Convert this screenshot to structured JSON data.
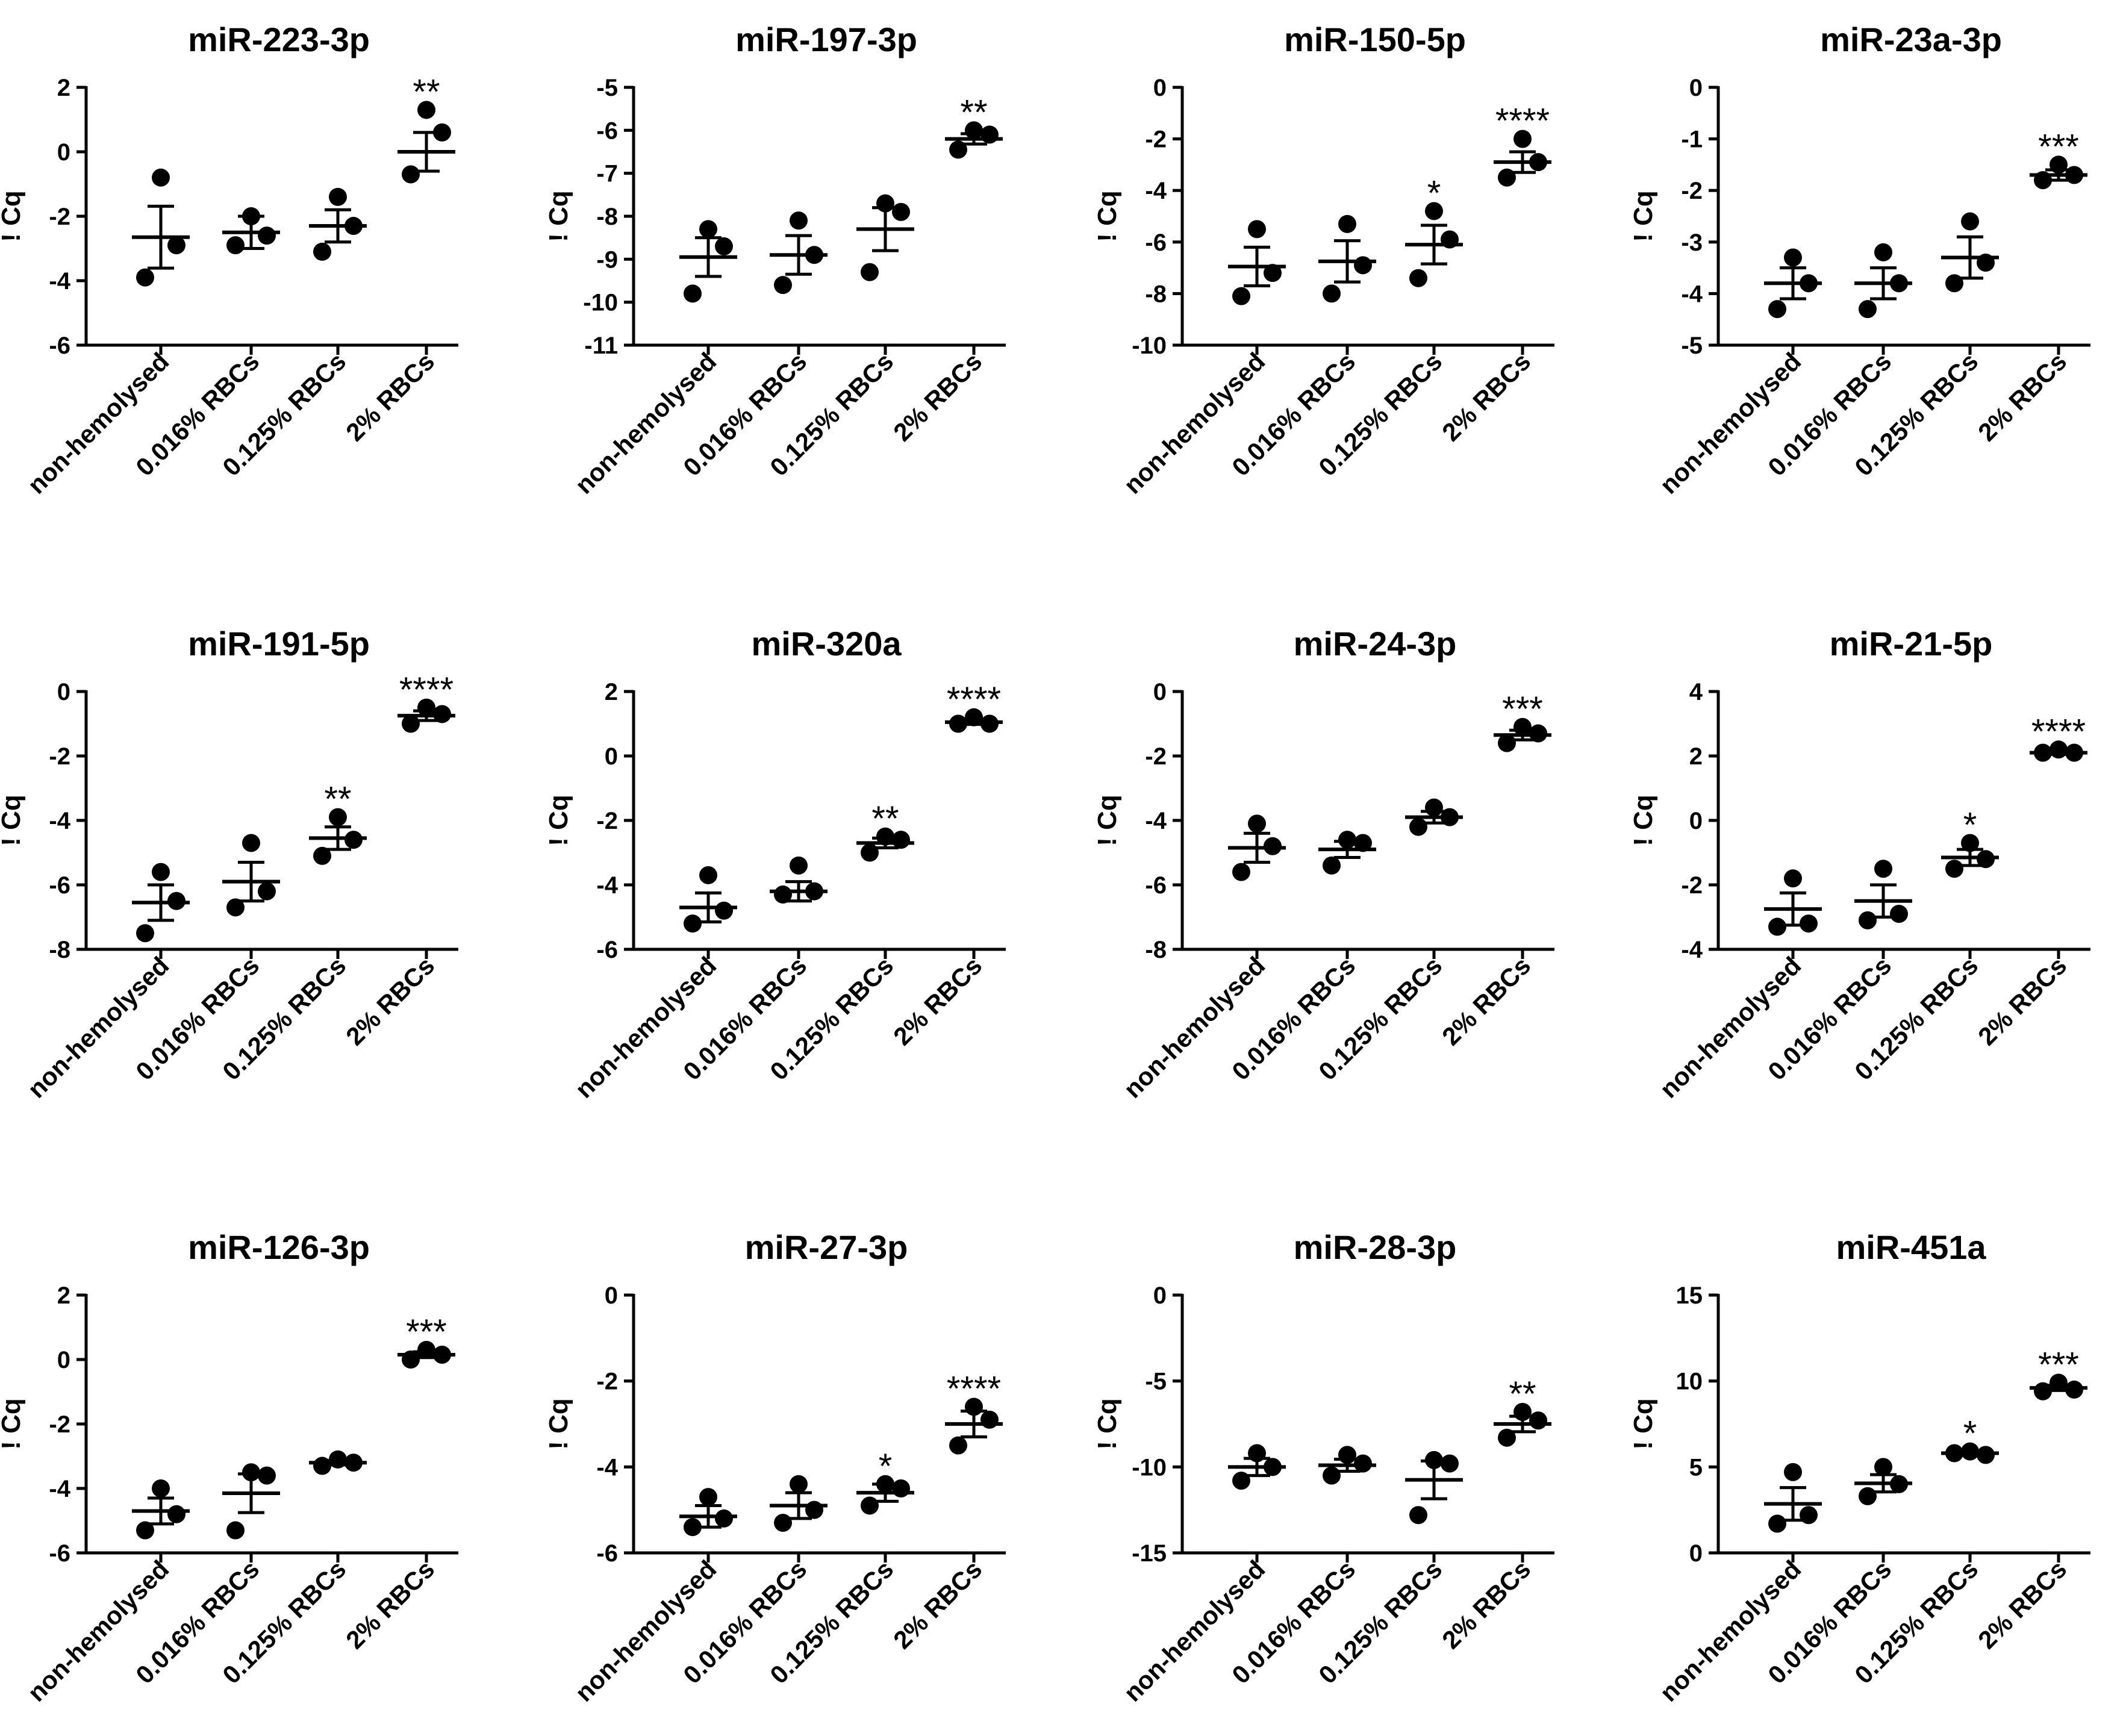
{
  "figure": {
    "background": "#ffffff",
    "ink": "#000000"
  },
  "chart_data": [
    {
      "type": "scatter",
      "title": "miR-223-3p",
      "ylabel": "! Cq",
      "xlabel": "",
      "categories": [
        "non-hemolysed",
        "0.016% RBCs",
        "0.125% RBCs",
        "2% RBCs"
      ],
      "ylim": [
        -6,
        2
      ],
      "yticks": [
        2,
        0,
        -2,
        -4,
        -6
      ],
      "ytick_labels": [
        "2",
        "0",
        "-2",
        "-4",
        "-6"
      ],
      "points": [
        [
          -0.8,
          -2.9,
          -3.9
        ],
        [
          -2.0,
          -2.6,
          -2.9
        ],
        [
          -1.4,
          -2.3,
          -3.1
        ],
        [
          1.3,
          0.6,
          -0.7
        ]
      ],
      "means": [
        -2.65,
        -2.5,
        -2.3,
        0.0
      ],
      "sem": [
        0.96,
        0.5,
        0.5,
        0.6
      ],
      "significance": [
        "",
        "",
        "",
        "**"
      ]
    },
    {
      "type": "scatter",
      "title": "miR-197-3p",
      "ylabel": "! Cq",
      "xlabel": "",
      "categories": [
        "non-hemolysed",
        "0.016% RBCs",
        "0.125% RBCs",
        "2% RBCs"
      ],
      "ylim": [
        -11,
        -5
      ],
      "yticks": [
        -5,
        -6,
        -7,
        -8,
        -9,
        -10,
        -11
      ],
      "ytick_labels": [
        "-5",
        "-6",
        "-7",
        "-8",
        "-9",
        "-10",
        "-11"
      ],
      "points": [
        [
          -8.3,
          -8.7,
          -9.8
        ],
        [
          -8.1,
          -8.9,
          -9.6
        ],
        [
          -7.7,
          -7.9,
          -9.3
        ],
        [
          -6.0,
          -6.1,
          -6.45
        ]
      ],
      "means": [
        -8.95,
        -8.9,
        -8.3,
        -6.2
      ],
      "sem": [
        0.45,
        0.45,
        0.5,
        0.12
      ],
      "significance": [
        "",
        "",
        "",
        "**"
      ]
    },
    {
      "type": "scatter",
      "title": "miR-150-5p",
      "ylabel": "! Cq",
      "xlabel": "",
      "categories": [
        "non-hemolysed",
        "0.016% RBCs",
        "0.125% RBCs",
        "2% RBCs"
      ],
      "ylim": [
        -10,
        0
      ],
      "yticks": [
        0,
        -2,
        -4,
        -6,
        -8,
        -10
      ],
      "ytick_labels": [
        "0",
        "-2",
        "-4",
        "-6",
        "-8",
        "-10"
      ],
      "points": [
        [
          -5.5,
          -7.2,
          -8.1
        ],
        [
          -5.3,
          -6.9,
          -8.0
        ],
        [
          -4.8,
          -5.9,
          -7.4
        ],
        [
          -2.0,
          -2.9,
          -3.5
        ]
      ],
      "means": [
        -6.95,
        -6.75,
        -6.1,
        -2.9
      ],
      "sem": [
        0.75,
        0.8,
        0.75,
        0.4
      ],
      "significance": [
        "",
        "",
        "*",
        "****"
      ]
    },
    {
      "type": "scatter",
      "title": "miR-23a-3p",
      "ylabel": "! Cq",
      "xlabel": "",
      "categories": [
        "non-hemolysed",
        "0.016% RBCs",
        "0.125% RBCs",
        "2% RBCs"
      ],
      "ylim": [
        -5,
        0
      ],
      "yticks": [
        0,
        -1,
        -2,
        -3,
        -4,
        -5
      ],
      "ytick_labels": [
        "0",
        "-1",
        "-2",
        "-3",
        "-4",
        "-5"
      ],
      "points": [
        [
          -3.3,
          -3.8,
          -4.3
        ],
        [
          -3.2,
          -3.8,
          -4.3
        ],
        [
          -2.6,
          -3.4,
          -3.8
        ],
        [
          -1.5,
          -1.7,
          -1.8
        ]
      ],
      "means": [
        -3.8,
        -3.8,
        -3.3,
        -1.7
      ],
      "sem": [
        0.3,
        0.3,
        0.4,
        0.1
      ],
      "significance": [
        "",
        "",
        "",
        "***"
      ]
    },
    {
      "type": "scatter",
      "title": "miR-191-5p",
      "ylabel": "! Cq",
      "xlabel": "",
      "categories": [
        "non-hemolysed",
        "0.016% RBCs",
        "0.125% RBCs",
        "2% RBCs"
      ],
      "ylim": [
        -8,
        0
      ],
      "yticks": [
        0,
        -2,
        -4,
        -6,
        -8
      ],
      "ytick_labels": [
        "0",
        "-2",
        "-4",
        "-6",
        "-8"
      ],
      "points": [
        [
          -5.6,
          -6.5,
          -7.5
        ],
        [
          -4.7,
          -6.2,
          -6.7
        ],
        [
          -3.9,
          -4.6,
          -5.1
        ],
        [
          -0.5,
          -0.7,
          -1.0
        ]
      ],
      "means": [
        -6.55,
        -5.9,
        -4.55,
        -0.75
      ],
      "sem": [
        0.55,
        0.6,
        0.35,
        0.15
      ],
      "significance": [
        "",
        "",
        "**",
        "****"
      ]
    },
    {
      "type": "scatter",
      "title": "miR-320a",
      "ylabel": "! Cq",
      "xlabel": "",
      "categories": [
        "non-hemolysed",
        "0.016% RBCs",
        "0.125% RBCs",
        "2% RBCs"
      ],
      "ylim": [
        -6,
        2
      ],
      "yticks": [
        2,
        0,
        -2,
        -4,
        -6
      ],
      "ytick_labels": [
        "2",
        "0",
        "-2",
        "-4",
        "-6"
      ],
      "points": [
        [
          -3.7,
          -4.8,
          -5.2
        ],
        [
          -3.4,
          -4.2,
          -4.3
        ],
        [
          -2.5,
          -2.6,
          -3.0
        ],
        [
          1.2,
          1.0,
          1.0
        ]
      ],
      "means": [
        -4.7,
        -4.2,
        -2.7,
        1.05
      ],
      "sem": [
        0.45,
        0.3,
        0.15,
        0.07
      ],
      "significance": [
        "",
        "",
        "**",
        "****"
      ]
    },
    {
      "type": "scatter",
      "title": "miR-24-3p",
      "ylabel": "! Cq",
      "xlabel": "",
      "categories": [
        "non-hemolysed",
        "0.016% RBCs",
        "0.125% RBCs",
        "2% RBCs"
      ],
      "ylim": [
        -8,
        0
      ],
      "yticks": [
        0,
        -2,
        -4,
        -6,
        -8
      ],
      "ytick_labels": [
        "0",
        "-2",
        "-4",
        "-6",
        "-8"
      ],
      "points": [
        [
          -4.1,
          -4.8,
          -5.6
        ],
        [
          -4.6,
          -4.7,
          -5.4
        ],
        [
          -3.6,
          -3.9,
          -4.2
        ],
        [
          -1.1,
          -1.3,
          -1.6
        ]
      ],
      "means": [
        -4.85,
        -4.9,
        -3.9,
        -1.35
      ],
      "sem": [
        0.45,
        0.25,
        0.18,
        0.15
      ],
      "significance": [
        "",
        "",
        "",
        "***"
      ]
    },
    {
      "type": "scatter",
      "title": "miR-21-5p",
      "ylabel": "! Cq",
      "xlabel": "",
      "categories": [
        "non-hemolysed",
        "0.016% RBCs",
        "0.125% RBCs",
        "2% RBCs"
      ],
      "ylim": [
        -4,
        4
      ],
      "yticks": [
        4,
        2,
        0,
        -2,
        -4
      ],
      "ytick_labels": [
        "4",
        "2",
        "0",
        "-2",
        "-4"
      ],
      "points": [
        [
          -1.8,
          -3.2,
          -3.3
        ],
        [
          -1.5,
          -2.9,
          -3.1
        ],
        [
          -0.7,
          -1.2,
          -1.5
        ],
        [
          2.2,
          2.1,
          2.1
        ]
      ],
      "means": [
        -2.75,
        -2.5,
        -1.15,
        2.1
      ],
      "sem": [
        0.5,
        0.5,
        0.25,
        0.05
      ],
      "significance": [
        "",
        "",
        "*",
        "****"
      ]
    },
    {
      "type": "scatter",
      "title": "miR-126-3p",
      "ylabel": "! Cq",
      "xlabel": "",
      "categories": [
        "non-hemolysed",
        "0.016% RBCs",
        "0.125% RBCs",
        "2% RBCs"
      ],
      "ylim": [
        -6,
        2
      ],
      "yticks": [
        2,
        0,
        -2,
        -4,
        -6
      ],
      "ytick_labels": [
        "2",
        "0",
        "-2",
        "-4",
        "-6"
      ],
      "points": [
        [
          -4.0,
          -4.8,
          -5.3
        ],
        [
          -3.5,
          -3.6,
          -5.3
        ],
        [
          -3.1,
          -3.2,
          -3.3
        ],
        [
          0.3,
          0.15,
          0.0
        ]
      ],
      "means": [
        -4.7,
        -4.15,
        -3.2,
        0.15
      ],
      "sem": [
        0.4,
        0.6,
        0.07,
        0.09
      ],
      "significance": [
        "",
        "",
        "",
        "***"
      ]
    },
    {
      "type": "scatter",
      "title": "miR-27-3p",
      "ylabel": "! Cq",
      "xlabel": "",
      "categories": [
        "non-hemolysed",
        "0.016% RBCs",
        "0.125% RBCs",
        "2% RBCs"
      ],
      "ylim": [
        -6,
        0
      ],
      "yticks": [
        0,
        -2,
        -4,
        -6
      ],
      "ytick_labels": [
        "0",
        "-2",
        "-4",
        "-6"
      ],
      "points": [
        [
          -4.7,
          -5.2,
          -5.4
        ],
        [
          -4.4,
          -5.0,
          -5.3
        ],
        [
          -4.4,
          -4.5,
          -4.9
        ],
        [
          -2.6,
          -2.9,
          -3.5
        ]
      ],
      "means": [
        -5.15,
        -4.9,
        -4.6,
        -3.0
      ],
      "sem": [
        0.25,
        0.3,
        0.2,
        0.3
      ],
      "significance": [
        "",
        "",
        "*",
        "****"
      ]
    },
    {
      "type": "scatter",
      "title": "miR-28-3p",
      "ylabel": "! Cq",
      "xlabel": "",
      "categories": [
        "non-hemolysed",
        "0.016% RBCs",
        "0.125% RBCs",
        "2% RBCs"
      ],
      "ylim": [
        -15,
        0
      ],
      "yticks": [
        0,
        -5,
        -10,
        -15
      ],
      "ytick_labels": [
        "0",
        "-5",
        "-10",
        "-15"
      ],
      "points": [
        [
          -9.2,
          -10.0,
          -10.8
        ],
        [
          -9.3,
          -9.8,
          -10.5
        ],
        [
          -9.6,
          -9.8,
          -12.8
        ],
        [
          -6.8,
          -7.3,
          -8.3
        ]
      ],
      "means": [
        -10.0,
        -9.9,
        -10.75,
        -7.5
      ],
      "sem": [
        0.5,
        0.35,
        1.1,
        0.45
      ],
      "significance": [
        "",
        "",
        "",
        "**"
      ]
    },
    {
      "type": "scatter",
      "title": "miR-451a",
      "ylabel": "! Cq",
      "xlabel": "",
      "categories": [
        "non-hemolysed",
        "0.016% RBCs",
        "0.125% RBCs",
        "2% RBCs"
      ],
      "ylim": [
        0,
        15
      ],
      "yticks": [
        15,
        10,
        5,
        0
      ],
      "ytick_labels": [
        "15",
        "10",
        "5",
        "0"
      ],
      "points": [
        [
          4.7,
          2.2,
          1.7
        ],
        [
          5.0,
          4.0,
          3.3
        ],
        [
          5.9,
          5.7,
          5.8
        ],
        [
          9.9,
          9.5,
          9.4
        ]
      ],
      "means": [
        2.85,
        4.05,
        5.8,
        9.6
      ],
      "sem": [
        0.95,
        0.5,
        0.06,
        0.15
      ],
      "significance": [
        "",
        "",
        "*",
        "***"
      ]
    }
  ]
}
